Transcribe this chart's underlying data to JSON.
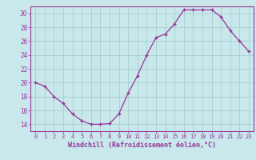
{
  "x": [
    0,
    1,
    2,
    3,
    4,
    5,
    6,
    7,
    8,
    9,
    10,
    11,
    12,
    13,
    14,
    15,
    16,
    17,
    18,
    19,
    20,
    21,
    22,
    23
  ],
  "y": [
    20,
    19.5,
    18,
    17,
    15.5,
    14.5,
    14,
    14,
    14.1,
    15.5,
    18.5,
    21,
    24,
    26.5,
    27,
    28.5,
    30.5,
    30.5,
    30.5,
    30.5,
    29.5,
    27.5,
    26,
    24.5
  ],
  "line_color": "#993399",
  "marker": "+",
  "bg_color": "#c8e8ec",
  "grid_color": "#a0c8cc",
  "xlabel": "Windchill (Refroidissement éolien,°C)",
  "ylabel_ticks": [
    14,
    16,
    18,
    20,
    22,
    24,
    26,
    28,
    30
  ],
  "xlim": [
    -0.5,
    23.5
  ],
  "ylim": [
    13,
    31
  ]
}
